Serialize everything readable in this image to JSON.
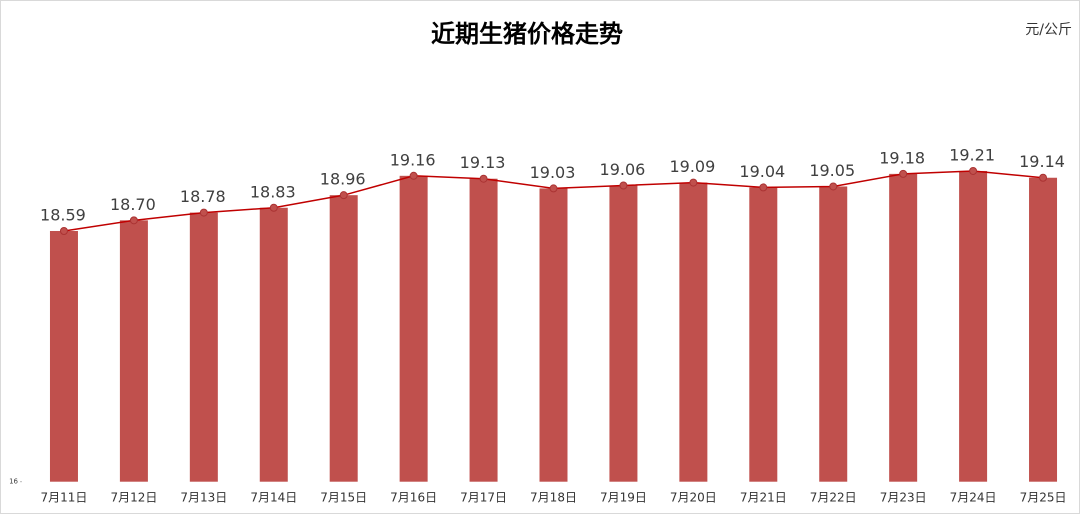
{
  "chart_data": {
    "type": "bar-line",
    "title": "近期生猪价格走势",
    "unit": "元/公斤",
    "categories": [
      "7月11日",
      "7月12日",
      "7月13日",
      "7月14日",
      "7月15日",
      "7月16日",
      "7月17日",
      "7月18日",
      "7月19日",
      "7月20日",
      "7月21日",
      "7月22日",
      "7月23日",
      "7月24日",
      "7月25日"
    ],
    "values": [
      18.59,
      18.7,
      18.78,
      18.83,
      18.96,
      19.16,
      19.13,
      19.03,
      19.06,
      19.09,
      19.04,
      19.05,
      19.18,
      19.21,
      19.14
    ],
    "value_labels": [
      "18.59",
      "18.70",
      "18.78",
      "18.83",
      "18.96",
      "19.16",
      "19.13",
      "19.03",
      "19.06",
      "19.09",
      "19.04",
      "19.05",
      "19.18",
      "19.21",
      "19.14"
    ],
    "color": "#c0504d",
    "line_color": "#c00000",
    "ylim": [
      16,
      20
    ],
    "yticks": [
      16
    ]
  }
}
